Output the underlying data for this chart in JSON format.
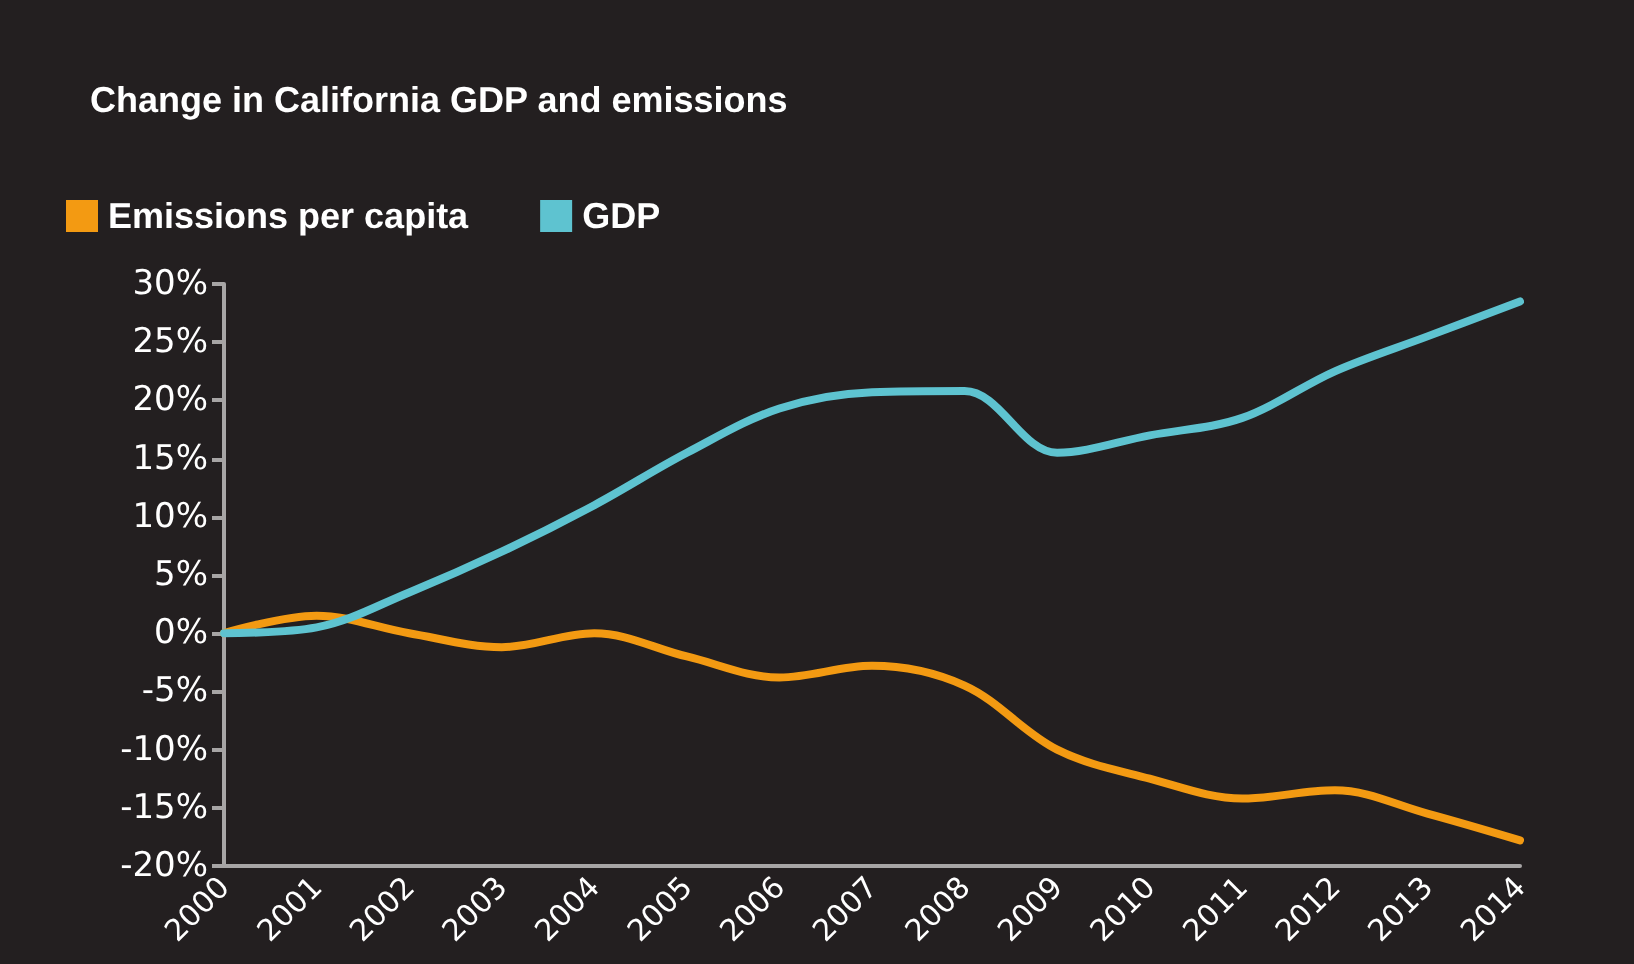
{
  "chart_data": {
    "type": "line",
    "title": "Change in California GDP and emissions",
    "categories": [
      "2000",
      "2001",
      "2002",
      "2003",
      "2004",
      "2005",
      "2006",
      "2007",
      "2008",
      "2009",
      "2010",
      "2011",
      "2012",
      "2013",
      "2014"
    ],
    "series": [
      {
        "name": "Emissions per capita",
        "color": "#f39a12",
        "values": [
          0,
          1.5,
          0,
          -1.2,
          0,
          -2,
          -3.8,
          -2.8,
          -4.5,
          -10,
          -12.5,
          -14.2,
          -13.5,
          -15.5,
          -17.8
        ]
      },
      {
        "name": "GDP",
        "color": "#5ec3d0",
        "values": [
          0,
          0.5,
          3.5,
          7,
          11,
          15.5,
          19.3,
          20.7,
          20.8,
          15.5,
          17,
          18.5,
          22.5,
          25.5,
          28.5
        ]
      }
    ],
    "ylim": [
      -20,
      30
    ],
    "yticks": [
      {
        "value": -20,
        "label": "-20%"
      },
      {
        "value": -15,
        "label": "-15%"
      },
      {
        "value": -10,
        "label": "-10%"
      },
      {
        "value": -5,
        "label": "-5%"
      },
      {
        "value": 0,
        "label": "0%"
      },
      {
        "value": 5,
        "label": "5%"
      },
      {
        "value": 10,
        "label": "10%"
      },
      {
        "value": 15,
        "label": "15%"
      },
      {
        "value": 20,
        "label": "20%"
      },
      {
        "value": 25,
        "label": "25%"
      },
      {
        "value": 30,
        "label": "30%"
      }
    ],
    "grid": false,
    "legend": "top left",
    "marker": "none",
    "line_style": "solid"
  }
}
